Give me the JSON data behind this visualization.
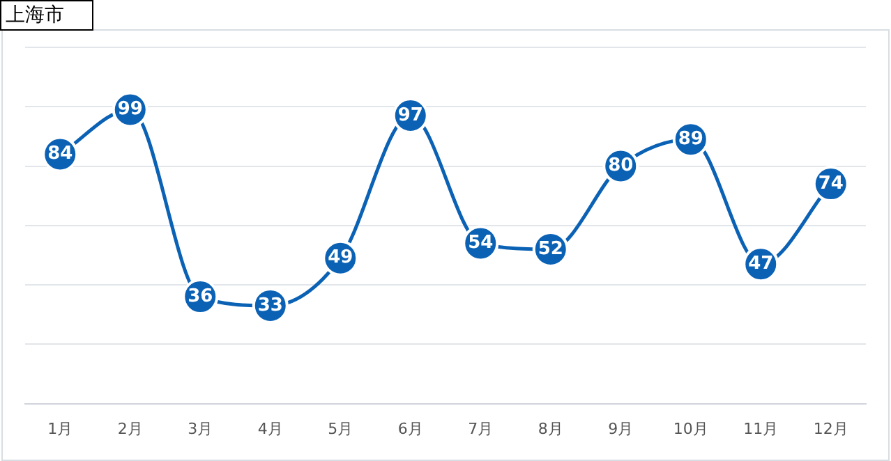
{
  "chart_data": {
    "type": "line",
    "title": "上海市",
    "categories": [
      "1月",
      "2月",
      "3月",
      "4月",
      "5月",
      "6月",
      "7月",
      "8月",
      "9月",
      "10月",
      "11月",
      "12月"
    ],
    "series": [
      {
        "color": "#0b62b5",
        "values": [
          84,
          99,
          36,
          33,
          49,
          97,
          54,
          52,
          80,
          89,
          47,
          74
        ]
      }
    ],
    "ylim": [
      0,
      120
    ],
    "yticks": [
      {
        "value": 0,
        "label": null
      },
      {
        "value": 20,
        "label": null
      },
      {
        "value": 40,
        "label": null
      },
      {
        "value": 60,
        "label": null
      },
      {
        "value": 80,
        "label": null
      },
      {
        "value": 100,
        "label": null
      },
      {
        "value": 120,
        "label": null
      }
    ],
    "tick_labels": "x",
    "grid": "y",
    "legend": false,
    "marker": "circle",
    "line_style": "solid",
    "data_labels": true
  }
}
